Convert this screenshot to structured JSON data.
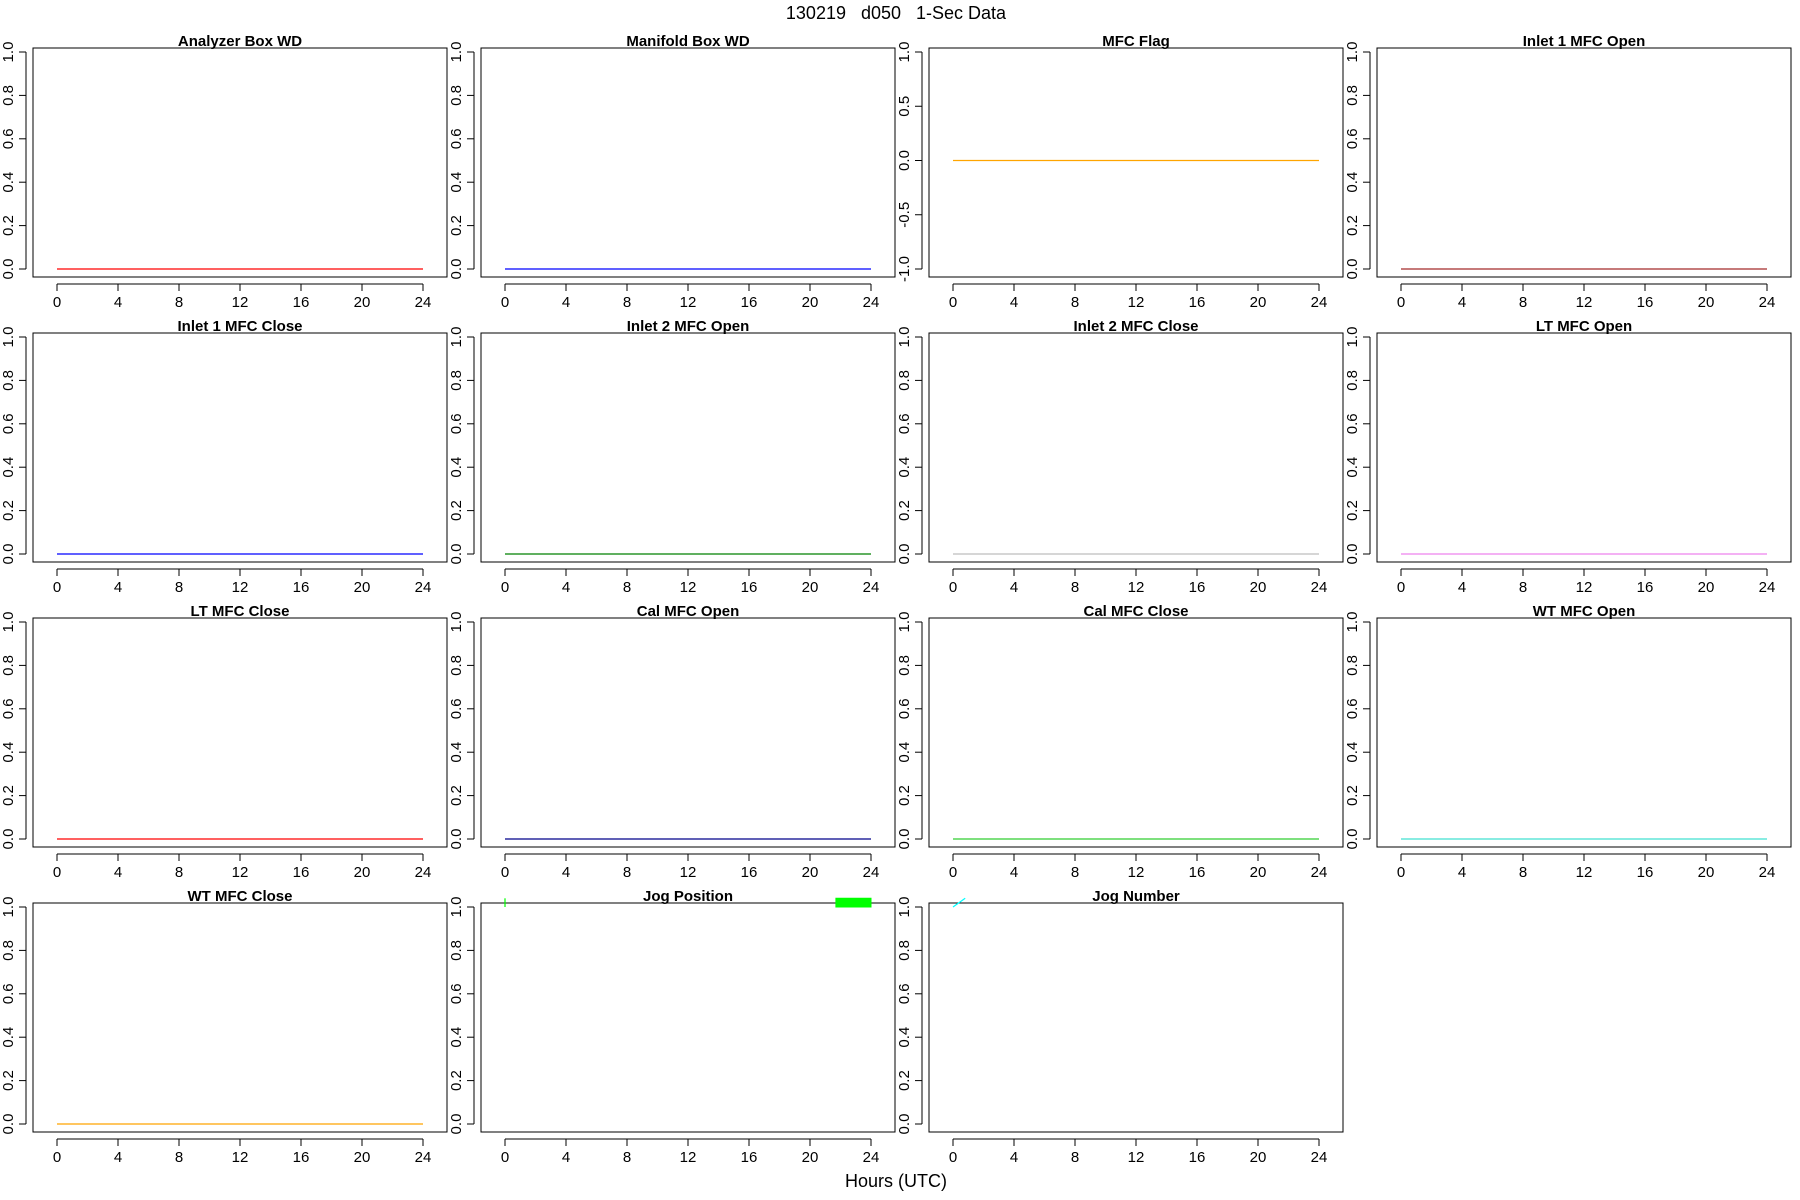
{
  "figure": {
    "title": "130219   d050   1-Sec Data",
    "xlabel": "Hours (UTC)"
  },
  "chart_data": [
    {
      "type": "line",
      "title": "Analyzer Box WD",
      "color": "#ff0000",
      "xlim": [
        0,
        24
      ],
      "ylim": [
        0,
        1
      ],
      "xticks": [
        "0",
        "4",
        "8",
        "12",
        "16",
        "20",
        "24"
      ],
      "yticks": [
        "0.0",
        "0.2",
        "0.4",
        "0.6",
        "0.8",
        "1.0"
      ],
      "series": [
        {
          "x": [
            0,
            24
          ],
          "y": [
            0,
            0
          ]
        }
      ]
    },
    {
      "type": "line",
      "title": "Manifold Box WD",
      "color": "#0000ff",
      "xlim": [
        0,
        24
      ],
      "ylim": [
        0,
        1
      ],
      "xticks": [
        "0",
        "4",
        "8",
        "12",
        "16",
        "20",
        "24"
      ],
      "yticks": [
        "0.0",
        "0.2",
        "0.4",
        "0.6",
        "0.8",
        "1.0"
      ],
      "series": [
        {
          "x": [
            0,
            24
          ],
          "y": [
            0,
            0
          ]
        }
      ]
    },
    {
      "type": "line",
      "title": "MFC Flag",
      "color": "#ffa500",
      "xlim": [
        0,
        24
      ],
      "ylim": [
        -1,
        1
      ],
      "xticks": [
        "0",
        "4",
        "8",
        "12",
        "16",
        "20",
        "24"
      ],
      "yticks": [
        "-1.0",
        "-0.5",
        "0.0",
        "0.5",
        "1.0"
      ],
      "series": [
        {
          "x": [
            0,
            24
          ],
          "y": [
            0,
            0
          ]
        }
      ]
    },
    {
      "type": "line",
      "title": "Inlet 1 MFC Open",
      "color": "#a52a2a",
      "xlim": [
        0,
        24
      ],
      "ylim": [
        0,
        1
      ],
      "xticks": [
        "0",
        "4",
        "8",
        "12",
        "16",
        "20",
        "24"
      ],
      "yticks": [
        "0.0",
        "0.2",
        "0.4",
        "0.6",
        "0.8",
        "1.0"
      ],
      "series": [
        {
          "x": [
            0,
            24
          ],
          "y": [
            0,
            0
          ]
        }
      ]
    },
    {
      "type": "line",
      "title": "Inlet 1 MFC Close",
      "color": "#0000ff",
      "xlim": [
        0,
        24
      ],
      "ylim": [
        0,
        1
      ],
      "xticks": [
        "0",
        "4",
        "8",
        "12",
        "16",
        "20",
        "24"
      ],
      "yticks": [
        "0.0",
        "0.2",
        "0.4",
        "0.6",
        "0.8",
        "1.0"
      ],
      "series": [
        {
          "x": [
            0,
            24
          ],
          "y": [
            0,
            0
          ]
        }
      ]
    },
    {
      "type": "line",
      "title": "Inlet 2 MFC Open",
      "color": "#008000",
      "xlim": [
        0,
        24
      ],
      "ylim": [
        0,
        1
      ],
      "xticks": [
        "0",
        "4",
        "8",
        "12",
        "16",
        "20",
        "24"
      ],
      "yticks": [
        "0.0",
        "0.2",
        "0.4",
        "0.6",
        "0.8",
        "1.0"
      ],
      "series": [
        {
          "x": [
            0,
            24
          ],
          "y": [
            0,
            0
          ]
        }
      ]
    },
    {
      "type": "line",
      "title": "Inlet 2 MFC Close",
      "color": "#bebebe",
      "xlim": [
        0,
        24
      ],
      "ylim": [
        0,
        1
      ],
      "xticks": [
        "0",
        "4",
        "8",
        "12",
        "16",
        "20",
        "24"
      ],
      "yticks": [
        "0.0",
        "0.2",
        "0.4",
        "0.6",
        "0.8",
        "1.0"
      ],
      "series": [
        {
          "x": [
            0,
            24
          ],
          "y": [
            0,
            0
          ]
        }
      ]
    },
    {
      "type": "line",
      "title": "LT MFC Open",
      "color": "#ee82ee",
      "xlim": [
        0,
        24
      ],
      "ylim": [
        0,
        1
      ],
      "xticks": [
        "0",
        "4",
        "8",
        "12",
        "16",
        "20",
        "24"
      ],
      "yticks": [
        "0.0",
        "0.2",
        "0.4",
        "0.6",
        "0.8",
        "1.0"
      ],
      "series": [
        {
          "x": [
            0,
            24
          ],
          "y": [
            0,
            0
          ]
        }
      ]
    },
    {
      "type": "line",
      "title": "LT MFC Close",
      "color": "#ff0000",
      "xlim": [
        0,
        24
      ],
      "ylim": [
        0,
        1
      ],
      "xticks": [
        "0",
        "4",
        "8",
        "12",
        "16",
        "20",
        "24"
      ],
      "yticks": [
        "0.0",
        "0.2",
        "0.4",
        "0.6",
        "0.8",
        "1.0"
      ],
      "series": [
        {
          "x": [
            0,
            24
          ],
          "y": [
            0,
            0
          ]
        }
      ]
    },
    {
      "type": "line",
      "title": "Cal MFC Open",
      "color": "#00008b",
      "xlim": [
        0,
        24
      ],
      "ylim": [
        0,
        1
      ],
      "xticks": [
        "0",
        "4",
        "8",
        "12",
        "16",
        "20",
        "24"
      ],
      "yticks": [
        "0.0",
        "0.2",
        "0.4",
        "0.6",
        "0.8",
        "1.0"
      ],
      "series": [
        {
          "x": [
            0,
            24
          ],
          "y": [
            0,
            0
          ]
        }
      ]
    },
    {
      "type": "line",
      "title": "Cal MFC Close",
      "color": "#32cd32",
      "xlim": [
        0,
        24
      ],
      "ylim": [
        0,
        1
      ],
      "xticks": [
        "0",
        "4",
        "8",
        "12",
        "16",
        "20",
        "24"
      ],
      "yticks": [
        "0.0",
        "0.2",
        "0.4",
        "0.6",
        "0.8",
        "1.0"
      ],
      "series": [
        {
          "x": [
            0,
            24
          ],
          "y": [
            0,
            0
          ]
        }
      ]
    },
    {
      "type": "line",
      "title": "WT MFC Open",
      "color": "#40e0d0",
      "xlim": [
        0,
        24
      ],
      "ylim": [
        0,
        1
      ],
      "xticks": [
        "0",
        "4",
        "8",
        "12",
        "16",
        "20",
        "24"
      ],
      "yticks": [
        "0.0",
        "0.2",
        "0.4",
        "0.6",
        "0.8",
        "1.0"
      ],
      "series": [
        {
          "x": [
            0,
            24
          ],
          "y": [
            0,
            0
          ]
        }
      ]
    },
    {
      "type": "line",
      "title": "WT MFC Close",
      "color": "#ffa500",
      "xlim": [
        0,
        24
      ],
      "ylim": [
        0,
        1
      ],
      "xticks": [
        "0",
        "4",
        "8",
        "12",
        "16",
        "20",
        "24"
      ],
      "yticks": [
        "0.0",
        "0.2",
        "0.4",
        "0.6",
        "0.8",
        "1.0"
      ],
      "series": [
        {
          "x": [
            0,
            24
          ],
          "y": [
            0,
            0
          ]
        }
      ]
    },
    {
      "type": "line",
      "title": "Jog Position",
      "color": "#00ff00",
      "xlim": [
        0,
        24
      ],
      "ylim": [
        0,
        1
      ],
      "xticks": [
        "0",
        "4",
        "8",
        "12",
        "16",
        "20",
        "24"
      ],
      "yticks": [
        "0.0",
        "0.2",
        "0.4",
        "0.6",
        "0.8",
        "1.0"
      ],
      "series": [
        {
          "x": [
            0,
            0
          ],
          "y": [
            1.0,
            1.04
          ]
        },
        {
          "x": [
            21.7,
            24,
            24,
            21.7,
            21.7
          ],
          "y": [
            1.0,
            1.0,
            1.04,
            1.04,
            1.0
          ],
          "fill": true
        }
      ]
    },
    {
      "type": "line",
      "title": "Jog Number",
      "color": "#00ffff",
      "xlim": [
        0,
        24
      ],
      "ylim": [
        0,
        1
      ],
      "xticks": [
        "0",
        "4",
        "8",
        "12",
        "16",
        "20",
        "24"
      ],
      "yticks": [
        "0.0",
        "0.2",
        "0.4",
        "0.6",
        "0.8",
        "1.0"
      ],
      "series": [
        {
          "x": [
            0,
            0.8
          ],
          "y": [
            1.0,
            1.04
          ]
        }
      ]
    }
  ]
}
